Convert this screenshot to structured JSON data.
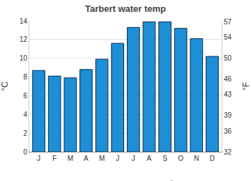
{
  "chart_data": {
    "type": "bar",
    "title": "Tarbert water temp",
    "categories": [
      "J",
      "F",
      "M",
      "A",
      "M",
      "J",
      "J",
      "A",
      "S",
      "O",
      "N",
      "D"
    ],
    "values": [
      8.7,
      8.1,
      7.9,
      8.8,
      9.9,
      11.6,
      13.3,
      13.9,
      13.9,
      13.2,
      12.1,
      10.2
    ],
    "color": "#1c8fd6",
    "y_label": "°C",
    "y2_label": "°F",
    "ylim": [
      0,
      14
    ],
    "yticks": [
      0,
      2,
      4,
      6,
      8,
      10,
      12,
      14
    ],
    "y2lim": [
      32,
      57.2
    ],
    "y2ticks": [
      32,
      36,
      39,
      43,
      46,
      50,
      54,
      57
    ],
    "grid": true,
    "annotations": [
      "© www.seatemperature.org"
    ]
  }
}
